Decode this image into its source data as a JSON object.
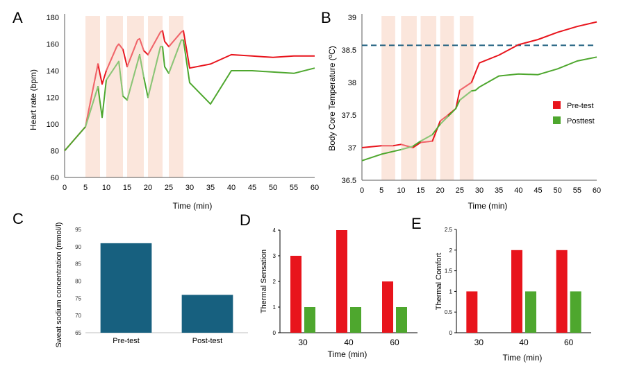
{
  "colors": {
    "pre": "#e8141c",
    "post": "#4ea72e",
    "bar_teal": "#17607f",
    "dashed": "#1f5f7f",
    "shade": "#fbe6dc",
    "axis": "#595959"
  },
  "chart_data": [
    {
      "panel": "A",
      "type": "line",
      "xlabel": "Time (min)",
      "ylabel": "Heart rate (bpm)",
      "xlim": [
        0,
        60
      ],
      "ylim": [
        60,
        180
      ],
      "xticks": [
        "0",
        "5",
        "10",
        "15",
        "20",
        "25",
        "30",
        "35",
        "40",
        "45",
        "50",
        "55",
        "60"
      ],
      "yticks": [
        "60",
        "80",
        "100",
        "120",
        "140",
        "160",
        "180"
      ],
      "exercise_blocks": [
        [
          5,
          8.5
        ],
        [
          10,
          14
        ],
        [
          15,
          19
        ],
        [
          20,
          23.5
        ],
        [
          25,
          28.5
        ]
      ],
      "series": [
        {
          "key": "pre",
          "x": [
            0,
            5,
            8,
            9,
            10,
            12.5,
            13,
            14,
            15,
            17.5,
            18,
            19,
            20,
            23,
            23.5,
            24,
            25,
            28,
            28.5,
            30,
            35,
            40,
            45,
            50,
            55,
            60
          ],
          "values": [
            80,
            98,
            145,
            130,
            140,
            158,
            160,
            156,
            143,
            163,
            164,
            155,
            152,
            169,
            170,
            162,
            158,
            169,
            170,
            142,
            145,
            152,
            151,
            150,
            151,
            151
          ]
        },
        {
          "key": "post",
          "x": [
            0,
            5,
            8,
            9,
            10,
            13,
            14,
            15,
            18,
            19,
            20,
            23,
            23.5,
            24,
            25,
            28,
            28.5,
            30,
            35,
            40,
            45,
            50,
            55,
            60
          ],
          "values": [
            80,
            98,
            128,
            105,
            133,
            147,
            121,
            118,
            152,
            135,
            120,
            158,
            158,
            143,
            138,
            163,
            163,
            131,
            115,
            140,
            140,
            139,
            138,
            142
          ]
        }
      ]
    },
    {
      "panel": "B",
      "type": "line",
      "xlabel": "Time (min)",
      "ylabel": "Body Core Temperature (ºC)",
      "xlim": [
        0,
        60
      ],
      "ylim": [
        36.5,
        39
      ],
      "threshold": 38.57,
      "xticks": [
        "0",
        "5",
        "10",
        "15",
        "20",
        "25",
        "30",
        "35",
        "40",
        "45",
        "50",
        "55",
        "60"
      ],
      "yticks": [
        "36.5",
        "37",
        "37.5",
        "38",
        "38.5",
        "39"
      ],
      "exercise_blocks": [
        [
          5,
          8.5
        ],
        [
          10,
          14
        ],
        [
          15,
          19
        ],
        [
          20,
          23.5
        ],
        [
          25,
          28.5
        ]
      ],
      "legend": {
        "placement": "right",
        "entries": [
          {
            "key": "pre",
            "label": "Pre-test"
          },
          {
            "key": "post",
            "label": "Posttest"
          }
        ]
      },
      "series": [
        {
          "key": "pre",
          "name": "Pre-test",
          "x": [
            0,
            5,
            8,
            10,
            13,
            15,
            18,
            20,
            22,
            24,
            25,
            28,
            30,
            35,
            40,
            45,
            50,
            55,
            60
          ],
          "values": [
            37.0,
            37.03,
            37.03,
            37.05,
            37.0,
            37.08,
            37.1,
            37.41,
            37.5,
            37.6,
            37.88,
            38.0,
            38.3,
            38.42,
            38.58,
            38.66,
            38.77,
            38.86,
            38.93
          ]
        },
        {
          "key": "post",
          "name": "Posttest",
          "x": [
            0,
            5,
            10,
            13,
            15,
            18,
            20,
            22,
            24,
            25,
            28,
            29,
            30,
            35,
            40,
            45,
            50,
            55,
            60
          ],
          "values": [
            36.8,
            36.9,
            36.97,
            37.02,
            37.1,
            37.2,
            37.36,
            37.48,
            37.6,
            37.73,
            37.87,
            37.88,
            37.93,
            38.1,
            38.13,
            38.12,
            38.21,
            38.33,
            38.39
          ]
        }
      ]
    },
    {
      "panel": "C",
      "type": "bar",
      "ylabel": "Sweat sodium concentration (mmol/l)",
      "ylim": [
        65,
        95
      ],
      "yticks": [
        "65",
        "70",
        "75",
        "80",
        "85",
        "90",
        "95"
      ],
      "categories": [
        "Pre-test",
        "Post-test"
      ],
      "values": [
        91,
        76
      ]
    },
    {
      "panel": "D",
      "type": "bar",
      "xlabel": "Time (min)",
      "ylabel": "Thermal Sensation",
      "ylim": [
        0,
        4
      ],
      "yticks": [
        "0",
        "1",
        "2",
        "3",
        "4"
      ],
      "categories": [
        "30",
        "40",
        "60"
      ],
      "series": [
        {
          "key": "pre",
          "values": [
            3,
            4,
            2
          ]
        },
        {
          "key": "post",
          "values": [
            1,
            1,
            1
          ]
        }
      ]
    },
    {
      "panel": "E",
      "type": "bar",
      "xlabel": "Time (min)",
      "ylabel": "Thermal Comfort",
      "ylim": [
        0,
        2.5
      ],
      "yticks": [
        "0",
        "0.5",
        "1",
        "1.5",
        "2",
        "2.5"
      ],
      "categories": [
        "30",
        "40",
        "60"
      ],
      "series": [
        {
          "key": "pre",
          "values": [
            1,
            2,
            2
          ]
        },
        {
          "key": "post",
          "values": [
            0,
            1,
            1
          ]
        }
      ]
    }
  ]
}
